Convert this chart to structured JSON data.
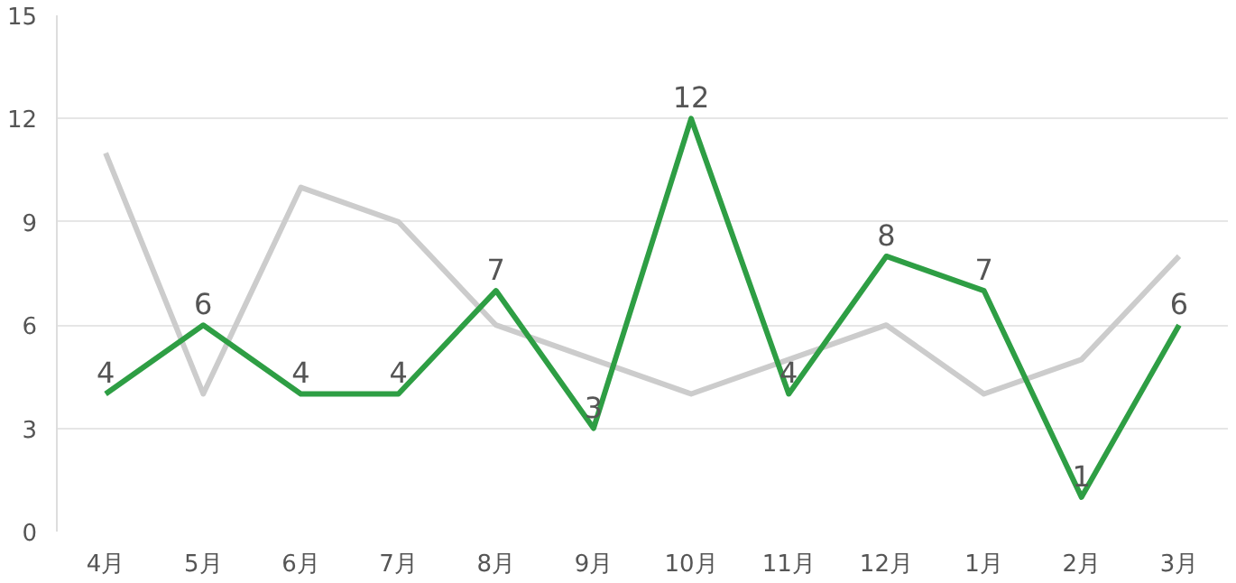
{
  "chart_data": {
    "type": "line",
    "categories": [
      "4月",
      "5月",
      "6月",
      "7月",
      "8月",
      "9月",
      "10月",
      "11月",
      "12月",
      "1月",
      "2月",
      "3月"
    ],
    "series": [
      {
        "color": "#cccccc",
        "values": [
          11,
          4,
          10,
          9,
          6,
          5,
          4,
          5,
          6,
          4,
          5,
          8
        ]
      },
      {
        "color": "#2e9e44",
        "values": [
          4,
          6,
          4,
          4,
          7,
          3,
          12,
          4,
          8,
          7,
          1,
          6
        ],
        "value_labels": [
          "4",
          "6",
          "4",
          "4",
          "7",
          "3",
          "12",
          "4",
          "8",
          "7",
          "1",
          "6"
        ]
      }
    ],
    "ylim": [
      0,
      15
    ],
    "yticks": [
      0,
      3,
      6,
      9,
      12,
      15
    ],
    "grid": "y",
    "marker": "none",
    "line_style": "solid"
  }
}
